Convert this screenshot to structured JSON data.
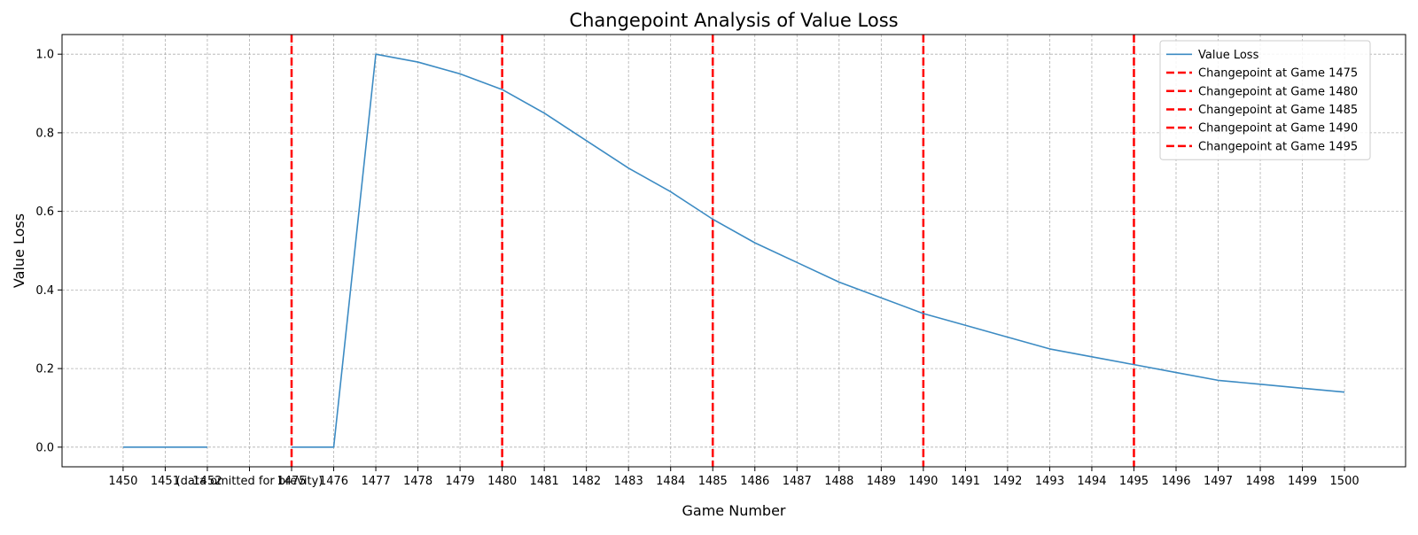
{
  "chart_data": {
    "type": "line",
    "title": "Changepoint Analysis of Value Loss",
    "xlabel": "Game Number",
    "ylabel": "Value Loss",
    "xlim": [
      -1.45,
      30.45
    ],
    "ylim": [
      -0.05,
      1.05
    ],
    "grid": true,
    "legend_position": "top-right",
    "x_ticks": [
      "1450",
      "1451",
      "1452",
      "(data omitted for brevity)",
      "1475",
      "1476",
      "1477",
      "1478",
      "1479",
      "1480",
      "1481",
      "1482",
      "1483",
      "1484",
      "1485",
      "1486",
      "1487",
      "1488",
      "1489",
      "1490",
      "1491",
      "1492",
      "1493",
      "1494",
      "1495",
      "1496",
      "1497",
      "1498",
      "1499",
      "1500"
    ],
    "y_ticks": [
      0.0,
      0.2,
      0.4,
      0.6,
      0.8,
      1.0
    ],
    "y_tick_labels": [
      "0.0",
      "0.2",
      "0.4",
      "0.6",
      "0.8",
      "1.0"
    ],
    "series": [
      {
        "name": "Value Loss",
        "color": "#3c8bc3",
        "segments": [
          [
            [
              "1450",
              0.0
            ],
            [
              "1451",
              0.0
            ],
            [
              "1452",
              0.0
            ]
          ],
          [
            [
              "1475",
              0.0
            ],
            [
              "1476",
              0.0
            ],
            [
              "1477",
              1.0
            ],
            [
              "1478",
              0.98
            ],
            [
              "1479",
              0.95
            ],
            [
              "1480",
              0.91
            ],
            [
              "1481",
              0.85
            ],
            [
              "1482",
              0.78
            ],
            [
              "1483",
              0.71
            ],
            [
              "1484",
              0.65
            ],
            [
              "1485",
              0.58
            ],
            [
              "1486",
              0.52
            ],
            [
              "1487",
              0.47
            ],
            [
              "1488",
              0.42
            ],
            [
              "1489",
              0.38
            ],
            [
              "1490",
              0.34
            ],
            [
              "1491",
              0.31
            ],
            [
              "1492",
              0.28
            ],
            [
              "1493",
              0.25
            ],
            [
              "1494",
              0.23
            ],
            [
              "1495",
              0.21
            ],
            [
              "1496",
              0.19
            ],
            [
              "1497",
              0.17
            ],
            [
              "1498",
              0.16
            ],
            [
              "1499",
              0.15
            ],
            [
              "1500",
              0.14
            ]
          ]
        ]
      }
    ],
    "changepoints": [
      {
        "x": "1475",
        "label": "Changepoint at Game 1475"
      },
      {
        "x": "1480",
        "label": "Changepoint at Game 1480"
      },
      {
        "x": "1485",
        "label": "Changepoint at Game 1485"
      },
      {
        "x": "1490",
        "label": "Changepoint at Game 1490"
      },
      {
        "x": "1495",
        "label": "Changepoint at Game 1495"
      }
    ],
    "changepoint_color": "#ff0000"
  }
}
